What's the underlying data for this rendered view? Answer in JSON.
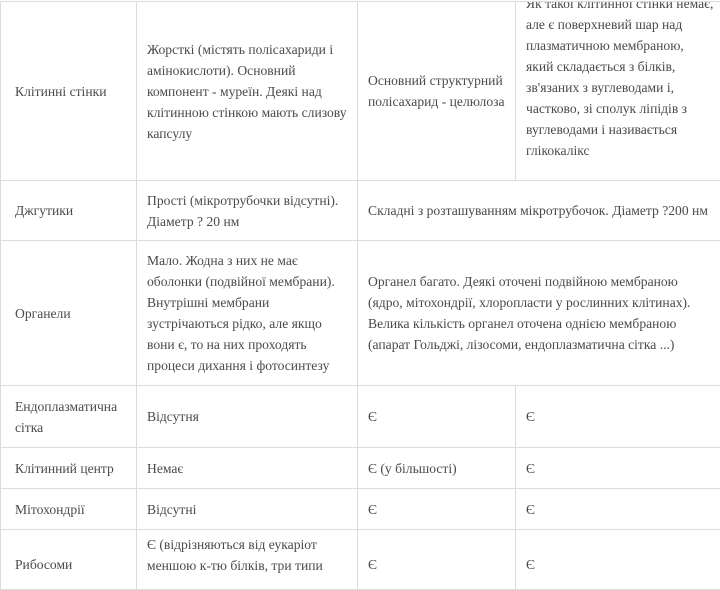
{
  "rows": [
    {
      "label": "Клітинні стінки",
      "prokaryote": "Жорсткі (містять полісахариди і амінокислоти). Основний компонент - муреїн. Деякі над клітинною стінкою мають слизову капсулу",
      "plant": "Основний структурний полісахарид - целюлоза",
      "animal": "Як такої клітинної стінки немає, але є поверхневий шар над плазматичною мембраною, який складається з білків, зв'язаних з вуглеводами і, частково, зі сполук ліпідів з вуглеводами і називається глікокалікс"
    },
    {
      "label": "Джгутики",
      "prokaryote": "Прості (мікротрубочки відсутні). Діаметр ? 20 нм",
      "eukaryote": "Складні з розташуванням мікротрубочок. Діаметр ?200 нм"
    },
    {
      "label": "Органели",
      "prokaryote": "Мало. Жодна з них не має оболонки (подвійної мембрани). Внутрішні мембрани зустрічаються рідко, але якщо вони є, то на них проходять процеси дихання і фотосинтезу",
      "eukaryote": "Органел багато. Деякі оточені подвійною мембраною (ядро, мітохондрії, хлоропласти у рослинних клітинах). Велика кількість органел оточена однією мембраною (апарат Гольджі, лізосоми, ендоплазматична сітка ...)"
    },
    {
      "label": "Ендоплазматична сітка",
      "prokaryote": "Відсутня",
      "plant": "Є",
      "animal": "Є"
    },
    {
      "label": "Клітинний центр",
      "prokaryote": "Немає",
      "plant": "Є (у більшості)",
      "animal": "Є"
    },
    {
      "label": "Мітохондрії",
      "prokaryote": "Відсутні",
      "plant": "Є",
      "animal": "Є"
    },
    {
      "label": "Рибосоми",
      "prokaryote": "Є (відрізняються від еукаріот меншою к-тю білків, три типи",
      "plant": "Є",
      "animal": "Є"
    }
  ]
}
